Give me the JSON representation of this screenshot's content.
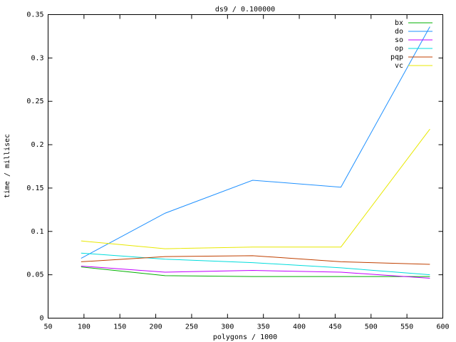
{
  "chart_data": {
    "type": "line",
    "title": "ds9 / 0.100000",
    "x_label": "polygons / 1000",
    "y_label": "time / millisec",
    "x": [
      96,
      213,
      335,
      458,
      582
    ],
    "series": [
      {
        "name": "bx",
        "color": "#00b000",
        "values": [
          0.059,
          0.049,
          0.048,
          0.048,
          0.048
        ]
      },
      {
        "name": "do",
        "color": "#1e90ff",
        "values": [
          0.069,
          0.121,
          0.159,
          0.151,
          0.336
        ]
      },
      {
        "name": "so",
        "color": "#c000ff",
        "values": [
          0.06,
          0.053,
          0.055,
          0.053,
          0.046
        ]
      },
      {
        "name": "op",
        "color": "#00dcdc",
        "values": [
          0.075,
          0.068,
          0.064,
          0.058,
          0.05
        ]
      },
      {
        "name": "pqp",
        "color": "#c04000",
        "values": [
          0.065,
          0.071,
          0.072,
          0.065,
          0.062
        ]
      },
      {
        "name": "vc",
        "color": "#e8e800",
        "values": [
          0.089,
          0.08,
          0.082,
          0.082,
          0.218
        ]
      }
    ],
    "xlim": [
      50,
      600
    ],
    "xticks": [
      50,
      100,
      150,
      200,
      250,
      300,
      350,
      400,
      450,
      500,
      550,
      600
    ],
    "ylim": [
      0,
      0.35
    ],
    "yticks": [
      0,
      0.05,
      0.1,
      0.15,
      0.2,
      0.25,
      0.3,
      0.35
    ],
    "grid": false,
    "legend": "top-right"
  }
}
